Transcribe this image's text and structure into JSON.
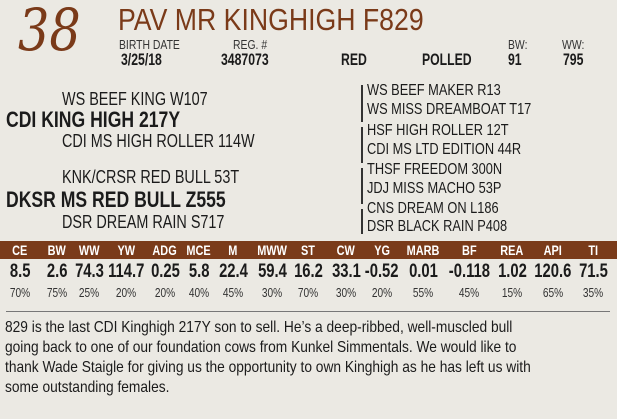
{
  "lot_number": "38",
  "animal_name": "PAV MR KINGHIGH F829",
  "details": {
    "birth_date_label": "BIRTH DATE",
    "birth_date": "3/25/18",
    "reg_label": "REG. #",
    "reg_number": "3487073",
    "color": "RED",
    "horn_status": "POLLED",
    "bw_label": "BW:",
    "bw": "91",
    "ww_label": "WW:",
    "ww": "795"
  },
  "pedigree": {
    "sire": "CDI KING HIGH 217Y",
    "sire_sire": "WS BEEF KING W107",
    "sire_dam": "CDI MS HIGH ROLLER 114W",
    "dam": "DKSR MS RED BULL Z555",
    "dam_sire": "KNK/CRSR RED BULL 53T",
    "dam_dam": "DSR DREAM RAIN S717",
    "great_grandparents": [
      "WS BEEF MAKER R13",
      "WS MISS DREAMBOAT T17",
      "HSF HIGH ROLLER 12T",
      "CDI MS LTD EDITION 44R",
      "THSF FREEDOM 300N",
      "JDJ MISS MACHO 53P",
      "CNS DREAM ON L186",
      "DSR BLACK RAIN P408"
    ]
  },
  "epd_table": {
    "headers": [
      "CE",
      "BW",
      "WW",
      "YW",
      "ADG",
      "MCE",
      "M",
      "MWW",
      "ST",
      "CW",
      "YG",
      "MARB",
      "BF",
      "REA",
      "API",
      "TI"
    ],
    "values": [
      "8.5",
      "2.6",
      "74.3",
      "114.7",
      "0.25",
      "5.8",
      "22.4",
      "59.4",
      "16.2",
      "33.1",
      "-0.52",
      "0.01",
      "-0.118",
      "1.02",
      "120.6",
      "71.5"
    ],
    "percentiles": [
      "70%",
      "75%",
      "25%",
      "20%",
      "20%",
      "40%",
      "45%",
      "30%",
      "70%",
      "30%",
      "20%",
      "55%",
      "45%",
      "15%",
      "65%",
      "35%"
    ]
  },
  "description_lines": [
    "829 is the last CDI Kinghigh 217Y son to sell. He’s a deep-ribbed, well-muscled bull",
    "going back to one of our foundation cows from Kunkel Simmentals. We would like to",
    "thank Wade Staigle for giving us the opportunity to own Kinghigh as he has left us with",
    "some outstanding females."
  ],
  "colors": {
    "brand_brown": "#7a3b1a",
    "background": "#ebe9e3"
  }
}
